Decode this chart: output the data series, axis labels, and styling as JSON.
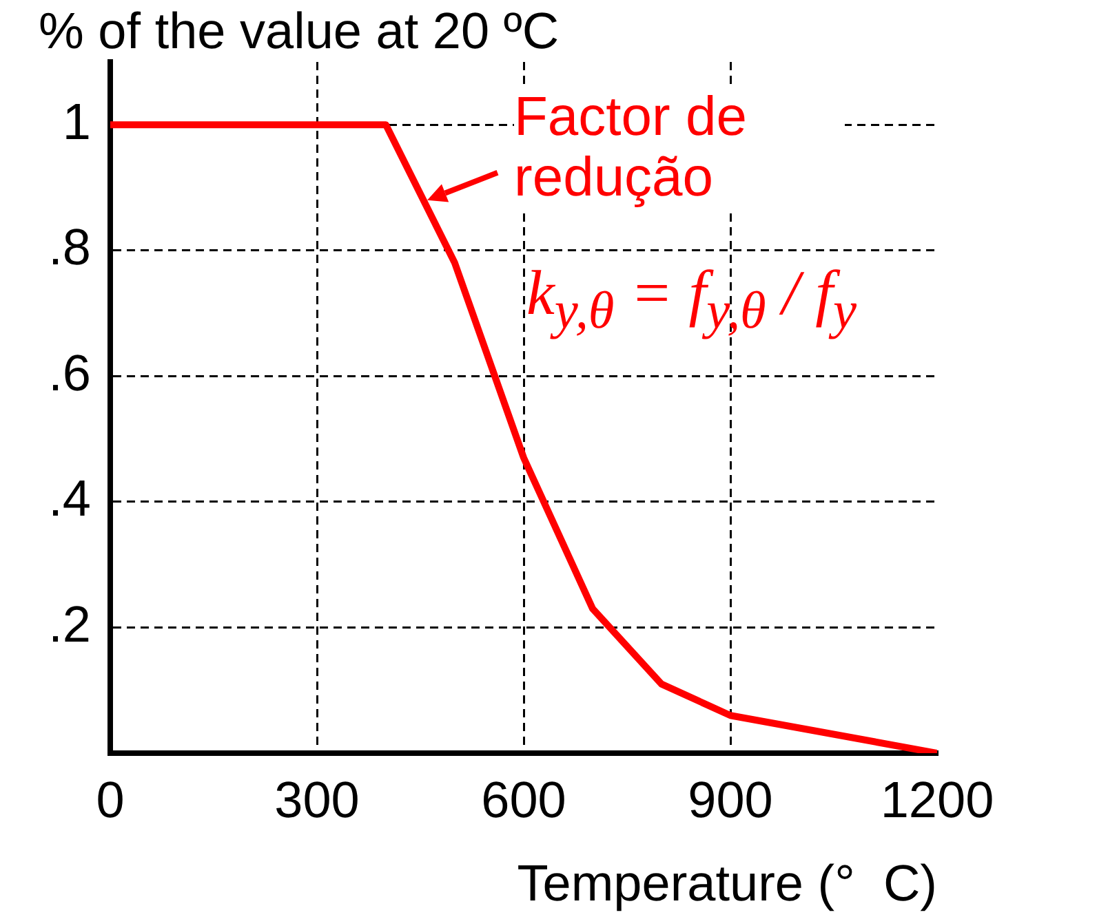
{
  "chart_data": {
    "type": "line",
    "ylabel": "% of the value at 20 ºC",
    "xlabel": "Temperature (°  C)",
    "x": [
      0,
      400,
      500,
      600,
      700,
      800,
      900,
      1200
    ],
    "series": [
      {
        "color": "#ff0000",
        "values": [
          1,
          1,
          0.78,
          0.47,
          0.23,
          0.11,
          0.06,
          0
        ]
      }
    ],
    "xlim": [
      0,
      1200
    ],
    "xticks": [
      0,
      300,
      600,
      900,
      1200
    ],
    "ylim": [
      0,
      1.1
    ],
    "yticks": [
      {
        "value": 0.2,
        "label": ".2"
      },
      {
        "value": 0.4,
        "label": ".4"
      },
      {
        "value": 0.6,
        "label": ".6"
      },
      {
        "value": 0.8,
        "label": ".8"
      },
      {
        "value": 1,
        "label": "1"
      }
    ],
    "grid": true,
    "line_style": "solid",
    "marker": "none",
    "legend": false,
    "annotations": [
      {
        "text": "Factor de redução",
        "x": 460,
        "y": 0.88
      },
      "k$_{y,θ}$ = f$_{y,θ}$ / f$_{y}$"
    ]
  }
}
